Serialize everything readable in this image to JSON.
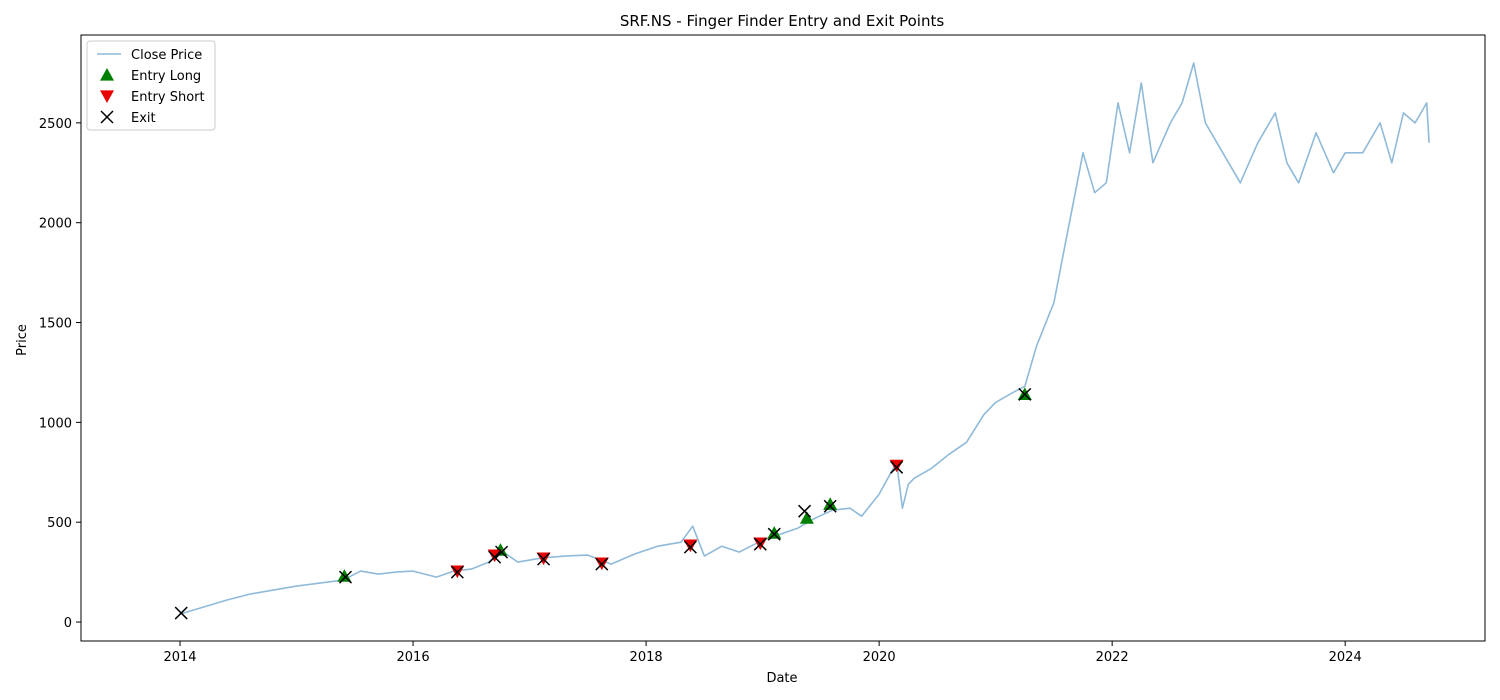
{
  "chart_data": {
    "type": "line",
    "title": "SRF.NS - Finger Finder Entry and Exit Points",
    "xlabel": "Date",
    "ylabel": "Price",
    "xlim": [
      2013.15,
      2025.2
    ],
    "ylim": [
      -95,
      2940
    ],
    "xticks": [
      2014,
      2016,
      2018,
      2020,
      2022,
      2024
    ],
    "xtick_labels": [
      "2014",
      "2016",
      "2018",
      "2020",
      "2022",
      "2024"
    ],
    "yticks": [
      0,
      500,
      1000,
      1500,
      2000,
      2500
    ],
    "ytick_labels": [
      "0",
      "500",
      "1000",
      "1500",
      "2000",
      "2500"
    ],
    "grid": false,
    "legend_position": "top-left",
    "legend": [
      {
        "label": "Close Price",
        "marker": "line",
        "color": "#8fbad9"
      },
      {
        "label": "Entry Long",
        "marker": "triangle-up",
        "color": "#008000"
      },
      {
        "label": "Entry Short",
        "marker": "triangle-down",
        "color": "#e80000"
      },
      {
        "label": "Exit",
        "marker": "x",
        "color": "#000000"
      }
    ],
    "series": [
      {
        "name": "Close Price",
        "color": "#8fbad9",
        "x": [
          2014.0,
          2014.2,
          2014.4,
          2014.6,
          2014.8,
          2015.0,
          2015.2,
          2015.4,
          2015.55,
          2015.7,
          2015.85,
          2016.0,
          2016.2,
          2016.35,
          2016.5,
          2016.65,
          2016.75,
          2016.9,
          2017.1,
          2017.3,
          2017.5,
          2017.7,
          2017.9,
          2018.1,
          2018.3,
          2018.4,
          2018.5,
          2018.65,
          2018.8,
          2019.0,
          2019.1,
          2019.3,
          2019.45,
          2019.6,
          2019.75,
          2019.85,
          2020.0,
          2020.15,
          2020.2,
          2020.25,
          2020.3,
          2020.45,
          2020.6,
          2020.75,
          2020.9,
          2021.0,
          2021.15,
          2021.25,
          2021.35,
          2021.5,
          2021.6,
          2021.7,
          2021.75,
          2021.85,
          2021.95,
          2022.05,
          2022.15,
          2022.25,
          2022.35,
          2022.5,
          2022.6,
          2022.7,
          2022.8,
          2022.95,
          2023.1,
          2023.25,
          2023.4,
          2023.5,
          2023.6,
          2023.75,
          2023.9,
          2024.0,
          2024.15,
          2024.3,
          2024.4,
          2024.5,
          2024.6,
          2024.7,
          2024.72
        ],
        "values": [
          40,
          75,
          110,
          140,
          160,
          180,
          195,
          210,
          255,
          240,
          250,
          255,
          225,
          255,
          265,
          300,
          360,
          300,
          320,
          330,
          335,
          290,
          340,
          380,
          400,
          480,
          330,
          380,
          350,
          410,
          430,
          470,
          520,
          560,
          570,
          530,
          640,
          800,
          570,
          690,
          720,
          770,
          840,
          900,
          1040,
          1100,
          1150,
          1180,
          1380,
          1600,
          1900,
          2200,
          2350,
          2150,
          2200,
          2600,
          2350,
          2700,
          2300,
          2500,
          2600,
          2800,
          2500,
          2350,
          2200,
          2400,
          2550,
          2300,
          2200,
          2450,
          2250,
          2350,
          2350,
          2500,
          2300,
          2550,
          2500,
          2600,
          2400
        ]
      }
    ],
    "entry_long": {
      "x": [
        2015.41,
        2016.75,
        2019.1,
        2019.38,
        2019.58,
        2021.25
      ],
      "values": [
        230,
        360,
        445,
        520,
        590,
        1140
      ]
    },
    "entry_short": {
      "x": [
        2016.38,
        2016.7,
        2017.12,
        2017.62,
        2018.38,
        2018.98,
        2020.15
      ],
      "values": [
        255,
        335,
        320,
        295,
        385,
        395,
        785
      ]
    },
    "exit": {
      "x": [
        2014.01,
        2015.42,
        2016.38,
        2016.7,
        2016.76,
        2017.12,
        2017.62,
        2018.38,
        2018.98,
        2019.1,
        2019.36,
        2019.58,
        2020.15,
        2021.25
      ],
      "values": [
        45,
        225,
        250,
        325,
        350,
        315,
        290,
        375,
        390,
        440,
        555,
        580,
        775,
        1140
      ]
    }
  }
}
